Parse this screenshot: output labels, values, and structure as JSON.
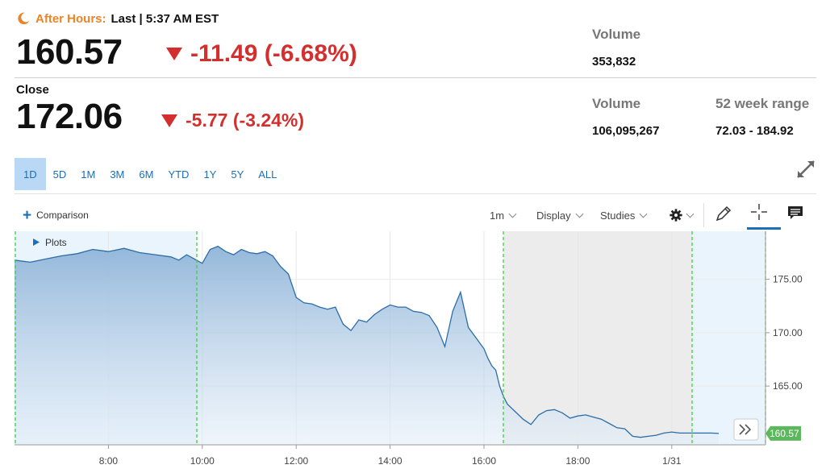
{
  "after_hours": {
    "label": "After Hours:",
    "status": "Last | 5:37 AM EST",
    "price": "160.57",
    "change": "-11.49 (-6.68%)",
    "volume_label": "Volume",
    "volume": "353,832"
  },
  "close": {
    "label": "Close",
    "price": "172.06",
    "change": "-5.77 (-3.24%)",
    "volume_label": "Volume",
    "volume": "106,095,267",
    "range_label": "52 week range",
    "range": "72.03 - 184.92"
  },
  "colors": {
    "negative": "#d32f2f",
    "accent": "#1a6fb6",
    "after_hours": "#e8842a",
    "price_tag": "#5cb85c"
  },
  "ranges": [
    "1D",
    "5D",
    "1M",
    "3M",
    "6M",
    "YTD",
    "1Y",
    "5Y",
    "ALL"
  ],
  "active_range": "1D",
  "toolbar": {
    "comparison": "Comparison",
    "interval": "1m",
    "display": "Display",
    "studies": "Studies",
    "settings_icon": "gear-icon",
    "draw_icon": "pencil-icon",
    "crosshair_icon": "crosshair-icon",
    "comment_icon": "comment-icon"
  },
  "chart_data": {
    "type": "area",
    "plots_label": "Plots",
    "x_ticks": [
      "8:00",
      "10:00",
      "12:00",
      "14:00",
      "16:00",
      "18:00",
      "1/31"
    ],
    "y_ticks": [
      "175.00",
      "170.00",
      "165.00"
    ],
    "ylim": [
      159.5,
      179.5
    ],
    "last_price": "160.57",
    "series": [
      {
        "x": [
          "6:00",
          "6:20",
          "6:40",
          "7:00",
          "7:20",
          "7:40",
          "8:00",
          "8:20",
          "8:40",
          "9:00",
          "9:20",
          "9:30",
          "9:40",
          "9:50",
          "10:00",
          "10:10",
          "10:20",
          "10:30",
          "10:40",
          "10:50",
          "11:00",
          "11:10",
          "11:20",
          "11:30",
          "11:40",
          "11:50",
          "12:00",
          "12:10",
          "12:20",
          "12:30",
          "12:40",
          "12:50",
          "13:00",
          "13:10",
          "13:20",
          "13:30",
          "13:40",
          "13:50",
          "14:00",
          "14:10",
          "14:20",
          "14:30",
          "14:40",
          "14:50",
          "15:00",
          "15:10",
          "15:20",
          "15:30",
          "15:40",
          "15:50",
          "16:00",
          "16:05",
          "16:10",
          "16:15",
          "16:20",
          "16:25",
          "16:30",
          "16:40",
          "16:50",
          "17:00",
          "17:10",
          "17:20",
          "17:30",
          "17:40",
          "17:50",
          "18:00",
          "18:10",
          "18:20",
          "18:30",
          "18:40",
          "18:50",
          "19:00",
          "19:10",
          "19:20",
          "19:30",
          "19:40",
          "19:50",
          "20:00",
          "20:10",
          "20:20",
          "20:30",
          "20:40",
          "20:50",
          "21:00"
        ],
        "values": [
          176.8,
          176.6,
          176.9,
          177.2,
          177.4,
          177.8,
          177.6,
          177.9,
          177.5,
          177.3,
          177.1,
          176.8,
          177.3,
          176.9,
          176.5,
          177.8,
          178.1,
          177.6,
          177.3,
          177.8,
          177.5,
          177.4,
          177.6,
          177.2,
          176.2,
          175.5,
          173.3,
          172.8,
          172.7,
          172.4,
          172.2,
          172.4,
          170.8,
          170.2,
          171.2,
          171.0,
          171.7,
          172.2,
          172.6,
          172.4,
          172.4,
          172.0,
          171.9,
          171.6,
          170.5,
          168.7,
          172.0,
          173.8,
          170.5,
          169.5,
          168.5,
          167.6,
          166.9,
          166.5,
          165.0,
          164.0,
          163.3,
          162.6,
          161.9,
          161.4,
          162.3,
          162.7,
          162.8,
          162.5,
          162.0,
          162.2,
          162.3,
          162.1,
          161.9,
          161.5,
          161.1,
          161.0,
          160.3,
          160.2,
          160.3,
          160.4,
          160.6,
          160.7,
          160.6,
          160.6,
          160.6,
          160.6,
          160.6,
          160.57
        ]
      }
    ]
  }
}
